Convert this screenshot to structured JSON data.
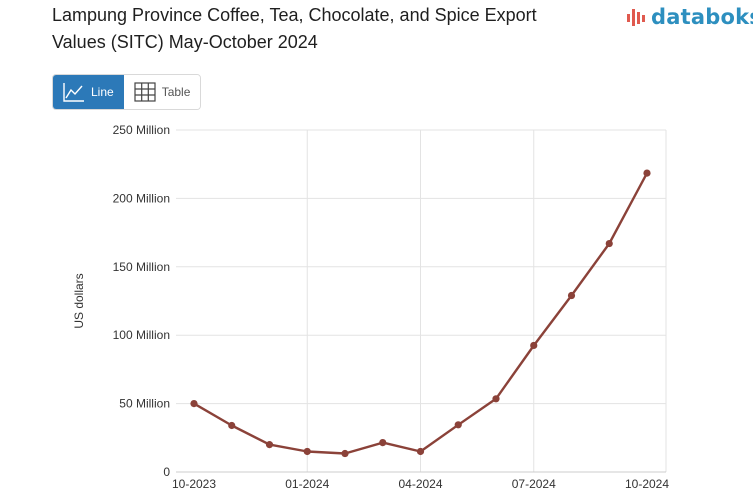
{
  "header": {
    "title_line1": "Lampung Province Coffee, Tea, Chocolate, and Spice Export",
    "title_line2": "Values (SITC) May-October 2024",
    "logo_text": "databoks"
  },
  "toggle": {
    "line_label": "Line",
    "table_label": "Table"
  },
  "colors": {
    "line": "#8b4239",
    "accent": "#2c79b8",
    "logo": "#2d8fbf",
    "logo_bars": "#e05a4f"
  },
  "chart_data": {
    "type": "line",
    "title": "Lampung Province Coffee, Tea, Chocolate, and Spice Export Values (SITC) May-October 2024",
    "ylabel": "US dollars",
    "xlabel": "",
    "ylim": [
      0,
      250000000
    ],
    "yticks": [
      {
        "value": 0,
        "label": "0"
      },
      {
        "value": 50000000,
        "label": "50 Million"
      },
      {
        "value": 100000000,
        "label": "100 Million"
      },
      {
        "value": 150000000,
        "label": "150 Million"
      },
      {
        "value": 200000000,
        "label": "200 Million"
      },
      {
        "value": 250000000,
        "label": "250 Million"
      }
    ],
    "x": [
      "10-2023",
      "11-2023",
      "12-2023",
      "01-2024",
      "02-2024",
      "03-2024",
      "04-2024",
      "05-2024",
      "06-2024",
      "07-2024",
      "08-2024",
      "09-2024",
      "10-2024"
    ],
    "xticks": [
      "10-2023",
      "01-2024",
      "04-2024",
      "07-2024",
      "10-2024"
    ],
    "series": [
      {
        "values": [
          50000000,
          34000000,
          20000000,
          15000000,
          13500000,
          21500000,
          15000000,
          34500000,
          53500000,
          92500000,
          129000000,
          167000000,
          218500000
        ]
      }
    ],
    "grid": true
  }
}
